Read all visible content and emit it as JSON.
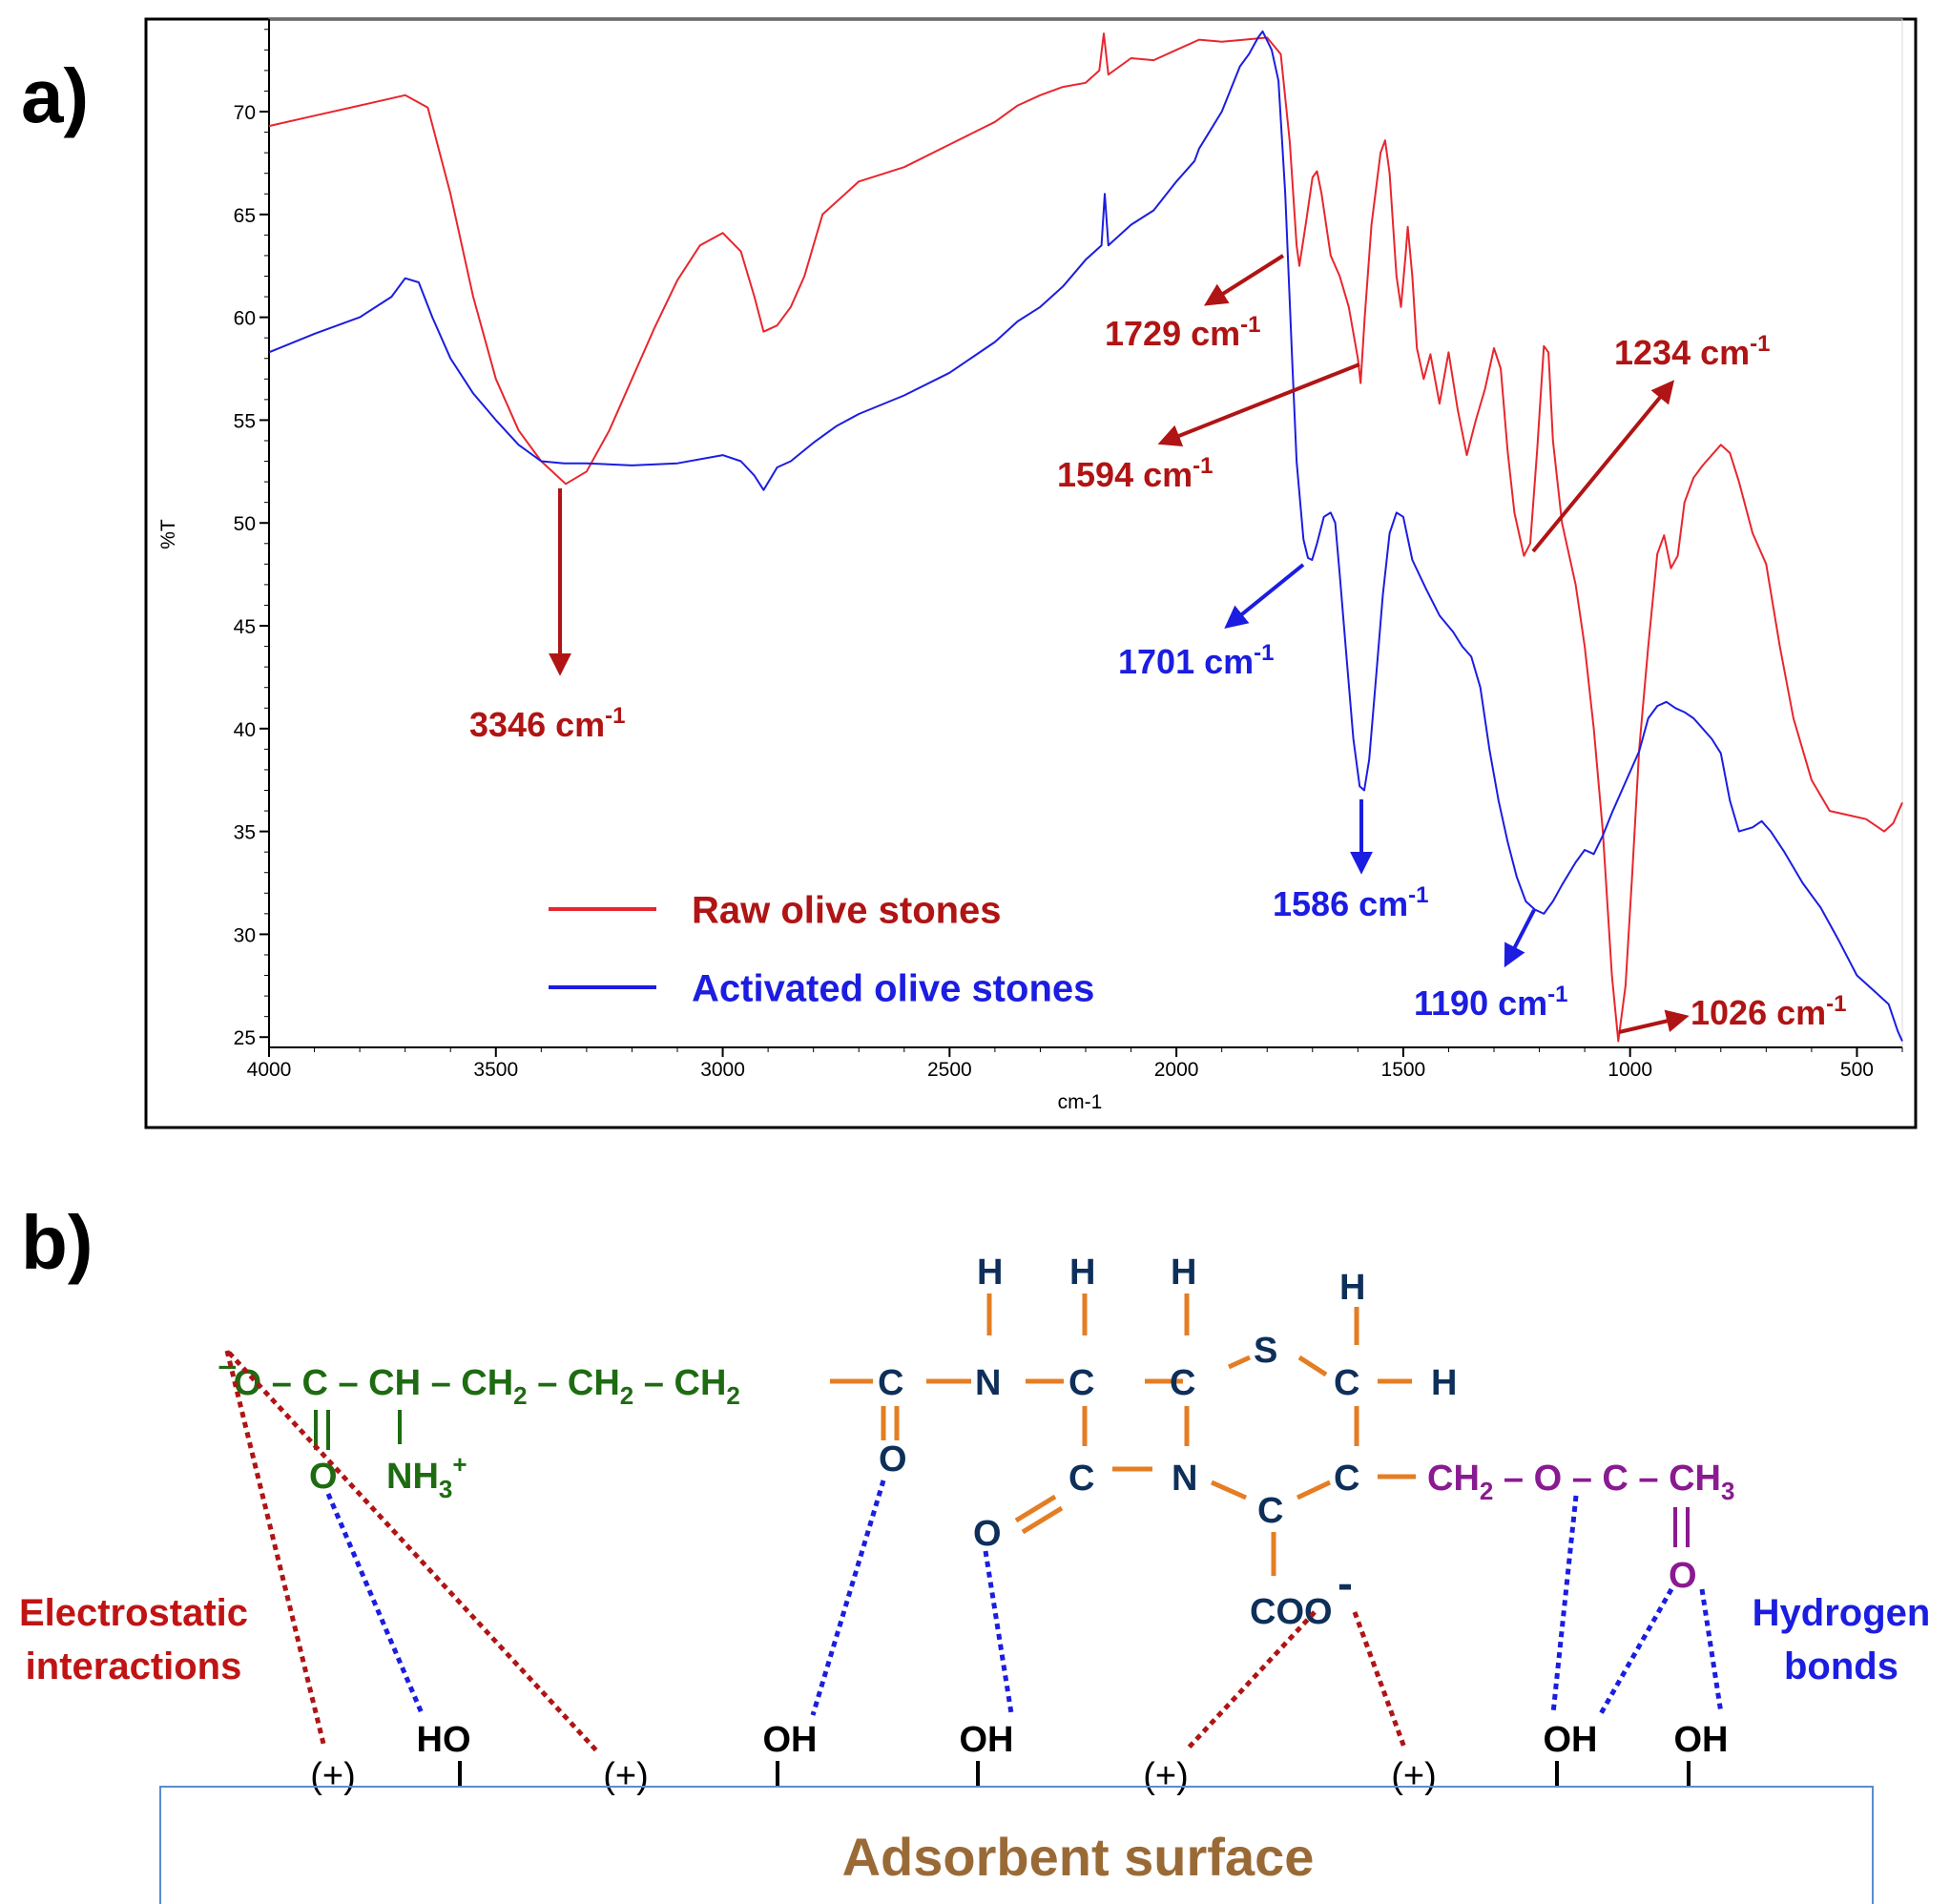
{
  "panel_a": {
    "label": "a)"
  },
  "panel_b": {
    "label": "b)",
    "left_caption": [
      "Electrostatic",
      "interactions"
    ],
    "right_caption": [
      "Hydrogen",
      "bonds"
    ],
    "surface_label": "Adsorbent surface",
    "surface_groups": [
      "(+)",
      "HO",
      "(+)",
      "OH",
      "OH",
      "(+)",
      "(+)",
      "OH",
      "OH"
    ]
  },
  "colors": {
    "raw": "#e8262d",
    "activated": "#1b1de0",
    "dark_red": "#b01414",
    "green": "#1e6b12",
    "navy": "#0e2f5a",
    "orange": "#e47d23",
    "purple": "#8a1a91",
    "surface_text": "#9a6a36",
    "surface_border": "#5a8ccf"
  },
  "chart_data": {
    "type": "line",
    "title": "",
    "xlabel": "cm-1",
    "ylabel": "%T",
    "xlim": [
      4000,
      400
    ],
    "ylim": [
      24.5,
      74.5
    ],
    "xticks": [
      4000,
      3500,
      3000,
      2500,
      2000,
      1500,
      1000,
      500
    ],
    "yticks": [
      25,
      30,
      35,
      40,
      45,
      50,
      55,
      60,
      65,
      70
    ],
    "series": [
      {
        "name": "Raw olive stones",
        "color": "#e8262d",
        "points": [
          [
            4000,
            69.3
          ],
          [
            3900,
            69.8
          ],
          [
            3800,
            70.3
          ],
          [
            3700,
            70.8
          ],
          [
            3650,
            70.2
          ],
          [
            3600,
            66.0
          ],
          [
            3550,
            61.0
          ],
          [
            3500,
            57.0
          ],
          [
            3450,
            54.5
          ],
          [
            3400,
            53.0
          ],
          [
            3346,
            51.9
          ],
          [
            3300,
            52.5
          ],
          [
            3250,
            54.5
          ],
          [
            3200,
            57.0
          ],
          [
            3150,
            59.5
          ],
          [
            3100,
            61.8
          ],
          [
            3050,
            63.5
          ],
          [
            3000,
            64.1
          ],
          [
            2960,
            63.2
          ],
          [
            2930,
            61.0
          ],
          [
            2910,
            59.3
          ],
          [
            2880,
            59.6
          ],
          [
            2850,
            60.5
          ],
          [
            2820,
            62.0
          ],
          [
            2780,
            65.0
          ],
          [
            2700,
            66.6
          ],
          [
            2600,
            67.3
          ],
          [
            2500,
            68.4
          ],
          [
            2400,
            69.5
          ],
          [
            2350,
            70.3
          ],
          [
            2300,
            70.8
          ],
          [
            2250,
            71.2
          ],
          [
            2200,
            71.4
          ],
          [
            2170,
            72.0
          ],
          [
            2160,
            73.8
          ],
          [
            2150,
            71.8
          ],
          [
            2100,
            72.6
          ],
          [
            2050,
            72.5
          ],
          [
            2000,
            73.0
          ],
          [
            1950,
            73.5
          ],
          [
            1900,
            73.4
          ],
          [
            1850,
            73.5
          ],
          [
            1800,
            73.6
          ],
          [
            1770,
            72.8
          ],
          [
            1750,
            68.5
          ],
          [
            1735,
            63.5
          ],
          [
            1729,
            62.5
          ],
          [
            1715,
            64.5
          ],
          [
            1700,
            66.8
          ],
          [
            1690,
            67.1
          ],
          [
            1680,
            66.0
          ],
          [
            1660,
            63.0
          ],
          [
            1640,
            62.0
          ],
          [
            1620,
            60.5
          ],
          [
            1600,
            58.0
          ],
          [
            1594,
            56.8
          ],
          [
            1585,
            60.0
          ],
          [
            1570,
            64.5
          ],
          [
            1550,
            68.0
          ],
          [
            1540,
            68.6
          ],
          [
            1530,
            67.0
          ],
          [
            1515,
            62.0
          ],
          [
            1505,
            60.5
          ],
          [
            1495,
            63.0
          ],
          [
            1490,
            64.4
          ],
          [
            1480,
            62.0
          ],
          [
            1470,
            58.5
          ],
          [
            1455,
            57.0
          ],
          [
            1440,
            58.2
          ],
          [
            1420,
            55.8
          ],
          [
            1400,
            58.3
          ],
          [
            1380,
            55.5
          ],
          [
            1360,
            53.3
          ],
          [
            1340,
            55.0
          ],
          [
            1320,
            56.5
          ],
          [
            1300,
            58.5
          ],
          [
            1285,
            57.5
          ],
          [
            1270,
            53.5
          ],
          [
            1255,
            50.5
          ],
          [
            1234,
            48.4
          ],
          [
            1220,
            49.0
          ],
          [
            1205,
            53.5
          ],
          [
            1190,
            58.6
          ],
          [
            1180,
            58.3
          ],
          [
            1170,
            54.0
          ],
          [
            1150,
            50.0
          ],
          [
            1120,
            47.0
          ],
          [
            1100,
            44.0
          ],
          [
            1080,
            40.0
          ],
          [
            1060,
            35.0
          ],
          [
            1040,
            28.0
          ],
          [
            1026,
            24.8
          ],
          [
            1010,
            27.5
          ],
          [
            995,
            33.0
          ],
          [
            980,
            39.0
          ],
          [
            960,
            44.0
          ],
          [
            940,
            48.5
          ],
          [
            925,
            49.4
          ],
          [
            910,
            47.8
          ],
          [
            895,
            48.4
          ],
          [
            880,
            51.0
          ],
          [
            860,
            52.2
          ],
          [
            840,
            52.8
          ],
          [
            800,
            53.8
          ],
          [
            780,
            53.4
          ],
          [
            760,
            52.0
          ],
          [
            730,
            49.5
          ],
          [
            700,
            48.0
          ],
          [
            670,
            44.0
          ],
          [
            640,
            40.5
          ],
          [
            600,
            37.5
          ],
          [
            560,
            36.0
          ],
          [
            520,
            35.8
          ],
          [
            480,
            35.6
          ],
          [
            440,
            35.0
          ],
          [
            420,
            35.4
          ],
          [
            400,
            36.4
          ]
        ]
      },
      {
        "name": "Activated olive stones",
        "color": "#1b1de0",
        "points": [
          [
            4000,
            58.3
          ],
          [
            3900,
            59.2
          ],
          [
            3800,
            60.0
          ],
          [
            3730,
            61.0
          ],
          [
            3700,
            61.9
          ],
          [
            3670,
            61.7
          ],
          [
            3640,
            60.0
          ],
          [
            3600,
            58.0
          ],
          [
            3550,
            56.3
          ],
          [
            3500,
            55.0
          ],
          [
            3450,
            53.8
          ],
          [
            3400,
            53.0
          ],
          [
            3350,
            52.9
          ],
          [
            3300,
            52.9
          ],
          [
            3200,
            52.8
          ],
          [
            3100,
            52.9
          ],
          [
            3000,
            53.3
          ],
          [
            2960,
            53.0
          ],
          [
            2930,
            52.3
          ],
          [
            2910,
            51.6
          ],
          [
            2880,
            52.7
          ],
          [
            2850,
            53.0
          ],
          [
            2800,
            53.9
          ],
          [
            2750,
            54.7
          ],
          [
            2700,
            55.3
          ],
          [
            2600,
            56.2
          ],
          [
            2500,
            57.3
          ],
          [
            2400,
            58.8
          ],
          [
            2350,
            59.8
          ],
          [
            2300,
            60.5
          ],
          [
            2250,
            61.5
          ],
          [
            2200,
            62.8
          ],
          [
            2165,
            63.5
          ],
          [
            2158,
            66.0
          ],
          [
            2150,
            63.5
          ],
          [
            2100,
            64.5
          ],
          [
            2050,
            65.2
          ],
          [
            2000,
            66.6
          ],
          [
            1960,
            67.6
          ],
          [
            1950,
            68.2
          ],
          [
            1900,
            70.0
          ],
          [
            1860,
            72.2
          ],
          [
            1840,
            72.8
          ],
          [
            1820,
            73.6
          ],
          [
            1810,
            73.9
          ],
          [
            1790,
            73.0
          ],
          [
            1775,
            71.5
          ],
          [
            1760,
            66.0
          ],
          [
            1745,
            58.0
          ],
          [
            1735,
            53.0
          ],
          [
            1720,
            49.2
          ],
          [
            1710,
            48.3
          ],
          [
            1701,
            48.2
          ],
          [
            1690,
            49.0
          ],
          [
            1675,
            50.3
          ],
          [
            1660,
            50.5
          ],
          [
            1650,
            50.0
          ],
          [
            1640,
            47.5
          ],
          [
            1625,
            43.5
          ],
          [
            1610,
            39.5
          ],
          [
            1596,
            37.2
          ],
          [
            1586,
            37.0
          ],
          [
            1575,
            38.5
          ],
          [
            1560,
            42.5
          ],
          [
            1545,
            46.5
          ],
          [
            1530,
            49.5
          ],
          [
            1515,
            50.5
          ],
          [
            1500,
            50.3
          ],
          [
            1480,
            48.2
          ],
          [
            1450,
            46.8
          ],
          [
            1420,
            45.5
          ],
          [
            1390,
            44.7
          ],
          [
            1370,
            44.0
          ],
          [
            1350,
            43.5
          ],
          [
            1330,
            42.0
          ],
          [
            1310,
            39.0
          ],
          [
            1290,
            36.5
          ],
          [
            1270,
            34.5
          ],
          [
            1250,
            32.8
          ],
          [
            1230,
            31.6
          ],
          [
            1210,
            31.2
          ],
          [
            1190,
            31.0
          ],
          [
            1170,
            31.6
          ],
          [
            1150,
            32.4
          ],
          [
            1120,
            33.5
          ],
          [
            1100,
            34.1
          ],
          [
            1080,
            33.9
          ],
          [
            1060,
            34.8
          ],
          [
            1040,
            35.9
          ],
          [
            1010,
            37.4
          ],
          [
            980,
            38.9
          ],
          [
            960,
            40.5
          ],
          [
            940,
            41.1
          ],
          [
            920,
            41.3
          ],
          [
            900,
            41.0
          ],
          [
            880,
            40.8
          ],
          [
            860,
            40.5
          ],
          [
            840,
            40.0
          ],
          [
            820,
            39.5
          ],
          [
            800,
            38.8
          ],
          [
            780,
            36.5
          ],
          [
            760,
            35.0
          ],
          [
            730,
            35.2
          ],
          [
            710,
            35.5
          ],
          [
            690,
            35.0
          ],
          [
            660,
            34.0
          ],
          [
            620,
            32.5
          ],
          [
            580,
            31.3
          ],
          [
            540,
            29.7
          ],
          [
            500,
            28.0
          ],
          [
            460,
            27.2
          ],
          [
            430,
            26.6
          ],
          [
            410,
            25.3
          ],
          [
            400,
            24.8
          ]
        ]
      }
    ],
    "annotations": [
      {
        "text": "3346 cm",
        "sup": "-1",
        "series": "Raw olive stones"
      },
      {
        "text": "1729 cm",
        "sup": "-1",
        "series": "Raw olive stones"
      },
      {
        "text": "1594 cm",
        "sup": "-1",
        "series": "Raw olive stones"
      },
      {
        "text": "1234 cm",
        "sup": "-1",
        "series": "Raw olive stones"
      },
      {
        "text": "1026 cm",
        "sup": "-1",
        "series": "Raw olive stones"
      },
      {
        "text": "1701 cm",
        "sup": "-1",
        "series": "Activated olive stones"
      },
      {
        "text": "1586 cm",
        "sup": "-1",
        "series": "Activated olive stones"
      },
      {
        "text": "1190 cm",
        "sup": "-1",
        "series": "Activated olive stones"
      }
    ],
    "legend": [
      {
        "label": "Raw olive stones",
        "color": "#e8262d",
        "text_color": "#b01414"
      },
      {
        "label": "Activated olive stones",
        "color": "#1b1de0",
        "text_color": "#1b1de0"
      }
    ],
    "legend_position": "bottom-left",
    "grid": false
  }
}
